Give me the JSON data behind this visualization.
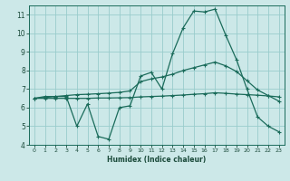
{
  "xlabel": "Humidex (Indice chaleur)",
  "xlim": [
    -0.5,
    23.5
  ],
  "ylim": [
    4,
    11.5
  ],
  "yticks": [
    4,
    5,
    6,
    7,
    8,
    9,
    10,
    11
  ],
  "xticks": [
    0,
    1,
    2,
    3,
    4,
    5,
    6,
    7,
    8,
    9,
    10,
    11,
    12,
    13,
    14,
    15,
    16,
    17,
    18,
    19,
    20,
    21,
    22,
    23
  ],
  "background_color": "#cce8e8",
  "grid_color": "#99cccc",
  "line_color": "#1a6b5a",
  "line1_x": [
    0,
    1,
    2,
    3,
    4,
    5,
    6,
    7,
    8,
    9,
    10,
    11,
    12,
    13,
    14,
    15,
    16,
    17,
    18,
    19,
    20,
    21,
    22,
    23
  ],
  "line1_y": [
    6.5,
    6.6,
    6.6,
    6.6,
    5.0,
    6.2,
    4.45,
    4.3,
    6.0,
    6.1,
    7.7,
    7.9,
    7.0,
    8.9,
    10.3,
    11.2,
    11.15,
    11.3,
    9.9,
    8.6,
    7.0,
    5.5,
    5.0,
    4.7
  ],
  "line2_x": [
    0,
    1,
    2,
    3,
    4,
    5,
    6,
    7,
    8,
    9,
    10,
    11,
    12,
    13,
    14,
    15,
    16,
    17,
    18,
    19,
    20,
    21,
    22,
    23
  ],
  "line2_y": [
    6.5,
    6.55,
    6.6,
    6.65,
    6.7,
    6.72,
    6.75,
    6.78,
    6.82,
    6.9,
    7.4,
    7.55,
    7.65,
    7.8,
    8.0,
    8.15,
    8.3,
    8.45,
    8.25,
    7.95,
    7.45,
    6.95,
    6.65,
    6.35
  ],
  "line3_x": [
    0,
    1,
    2,
    3,
    4,
    5,
    6,
    7,
    8,
    9,
    10,
    11,
    12,
    13,
    14,
    15,
    16,
    17,
    18,
    19,
    20,
    21,
    22,
    23
  ],
  "line3_y": [
    6.5,
    6.5,
    6.5,
    6.5,
    6.5,
    6.5,
    6.52,
    6.52,
    6.53,
    6.54,
    6.58,
    6.6,
    6.62,
    6.65,
    6.68,
    6.72,
    6.75,
    6.8,
    6.77,
    6.73,
    6.7,
    6.67,
    6.63,
    6.58
  ]
}
